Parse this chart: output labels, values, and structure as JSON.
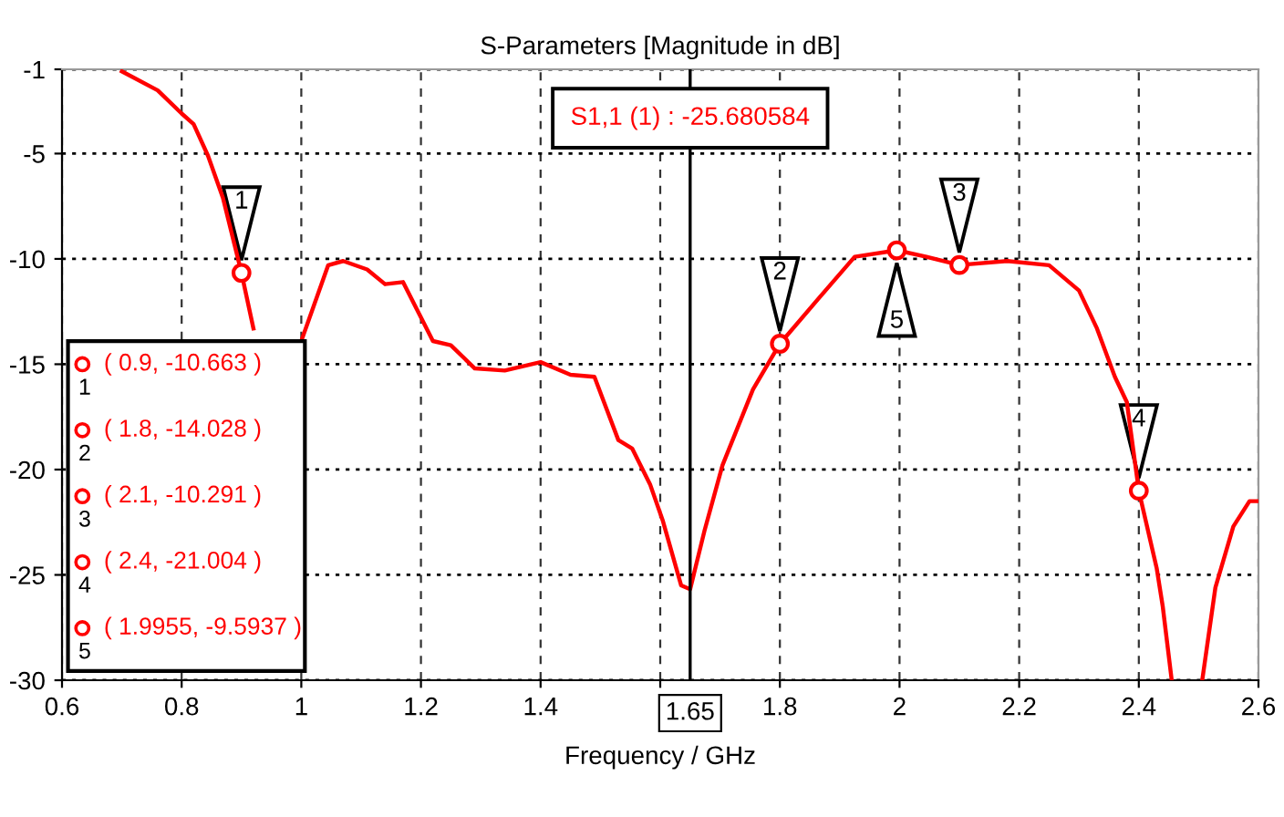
{
  "chart_data": {
    "type": "line",
    "title": "S-Parameters [Magnitude in dB]",
    "xlabel": "Frequency / GHz",
    "xlim": [
      0.6,
      2.6
    ],
    "xticks": [
      0.6,
      0.8,
      1,
      1.2,
      1.4,
      {
        "value": 1.6,
        "label": null
      },
      1.8,
      2,
      2.2,
      2.4,
      2.6
    ],
    "ylim": [
      -30,
      -1
    ],
    "yticks": [
      -30,
      -25,
      -20,
      -15,
      -10,
      -5,
      -1
    ],
    "grid": true,
    "legend": false,
    "series": [
      {
        "color": "#ff0000",
        "marker": "none",
        "line_style": "solid",
        "x": [
          0.7,
          0.76,
          0.8,
          0.82,
          0.844,
          0.869,
          0.9,
          0.92,
          0.955,
          1.0,
          1.045,
          1.07,
          1.11,
          1.14,
          1.17,
          1.22,
          1.25,
          1.29,
          1.34,
          1.4,
          1.45,
          1.49,
          1.51,
          1.53,
          1.553,
          1.583,
          1.604,
          1.635,
          1.65,
          1.674,
          1.704,
          1.755,
          1.8,
          1.864,
          1.925,
          1.9955,
          2.045,
          2.1,
          2.18,
          2.25,
          2.3,
          2.33,
          2.36,
          2.38,
          2.4,
          2.43,
          2.44,
          2.455,
          2.48,
          2.506,
          2.528,
          2.558,
          2.585,
          2.6
        ],
        "values": [
          -1.1,
          -2.0,
          -3.1,
          -3.6,
          -5.1,
          -7.1,
          -10.663,
          -13.3,
          null,
          -13.9,
          -10.3,
          -10.1,
          -10.5,
          -11.2,
          -11.1,
          -13.9,
          -14.1,
          -15.2,
          -15.3,
          -14.9,
          -15.5,
          -15.6,
          -17.1,
          -18.6,
          -19.0,
          -20.7,
          -22.4,
          -25.5,
          -25.680584,
          -22.9,
          -19.8,
          -16.2,
          -14.028,
          -11.9,
          -9.9,
          -9.5937,
          -9.9,
          -10.291,
          -10.1,
          -10.3,
          -11.5,
          -13.3,
          -15.6,
          -16.8,
          -21.004,
          -24.7,
          -26.5,
          -30,
          null,
          -30,
          -25.6,
          -22.7,
          -21.5,
          -21.5
        ]
      },
      {
        "type": "scatter",
        "color": "#ff0000",
        "marker": "circle",
        "x": [
          0.9,
          1.8,
          2.1,
          2.4,
          1.9955
        ],
        "values": [
          -10.663,
          -14.028,
          -10.291,
          -21.004,
          -9.5937
        ]
      }
    ],
    "ref_lines": [
      {
        "axis": "x",
        "value": 1.65,
        "label": "1.65",
        "color": "#000000",
        "line_style": "solid"
      }
    ],
    "annotations": [
      {
        "text": "1",
        "x": 0.9,
        "y": -10.663
      },
      {
        "text": "2",
        "x": 1.8,
        "y": -14.028
      },
      {
        "text": "3",
        "x": 2.1,
        "y": -10.291
      },
      {
        "text": "4",
        "x": 2.4,
        "y": -21.004
      },
      {
        "text": "5",
        "x": 1.9955,
        "y": -9.5937
      },
      "S1,1 (1) : -25.680584",
      "( 0.9, -10.663 )",
      "( 1.8, -14.028 )",
      "( 2.1, -10.291 )",
      "( 2.4, -21.004 )",
      "( 1.9955, -9.5937 )"
    ]
  }
}
